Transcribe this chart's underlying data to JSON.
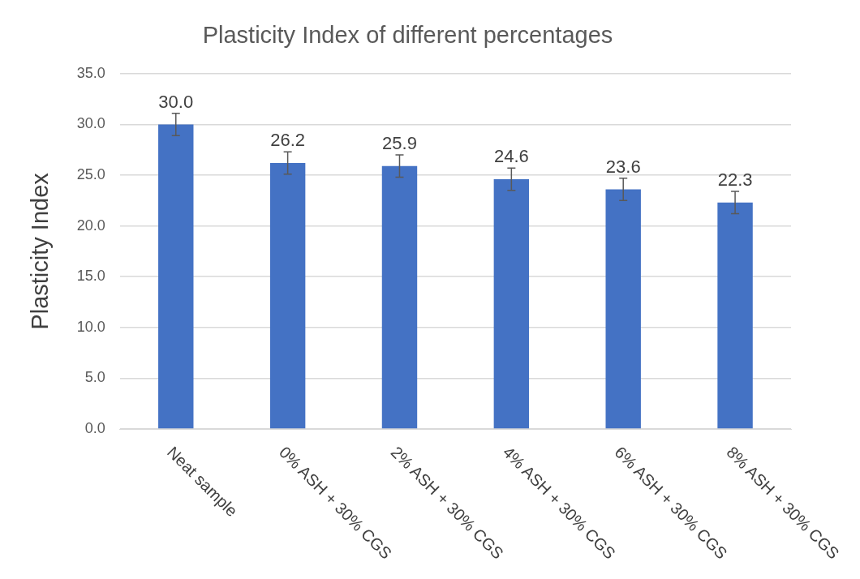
{
  "chart_data": {
    "type": "bar",
    "title": "Plasticity Index of different percentages",
    "ylabel": "Plasticity Index",
    "categories": [
      "Neat sample",
      "0% ASH + 30% CGS",
      "2% ASH + 30% CGS",
      "4% ASH + 30% CGS",
      "6% ASH + 30% CGS",
      "8% ASH + 30% CGS"
    ],
    "values": [
      30.0,
      26.2,
      25.9,
      24.6,
      23.6,
      22.3
    ],
    "errors": [
      1.1,
      1.1,
      1.1,
      1.1,
      1.1,
      1.1
    ],
    "color": "#4472c4",
    "ylim": [
      0,
      35
    ],
    "yticks": [
      {
        "value": 0,
        "label": "0.0"
      },
      {
        "value": 5,
        "label": "5.0"
      },
      {
        "value": 10,
        "label": "10.0"
      },
      {
        "value": 15,
        "label": "15.0"
      },
      {
        "value": 20,
        "label": "20.0"
      },
      {
        "value": 25,
        "label": "25.0"
      },
      {
        "value": 30,
        "label": "30.0"
      },
      {
        "value": 35,
        "label": "35.0"
      }
    ],
    "value_labels": [
      "30.0",
      "26.2",
      "25.9",
      "24.6",
      "23.6",
      "22.3"
    ],
    "grid": "y",
    "legend": false
  }
}
